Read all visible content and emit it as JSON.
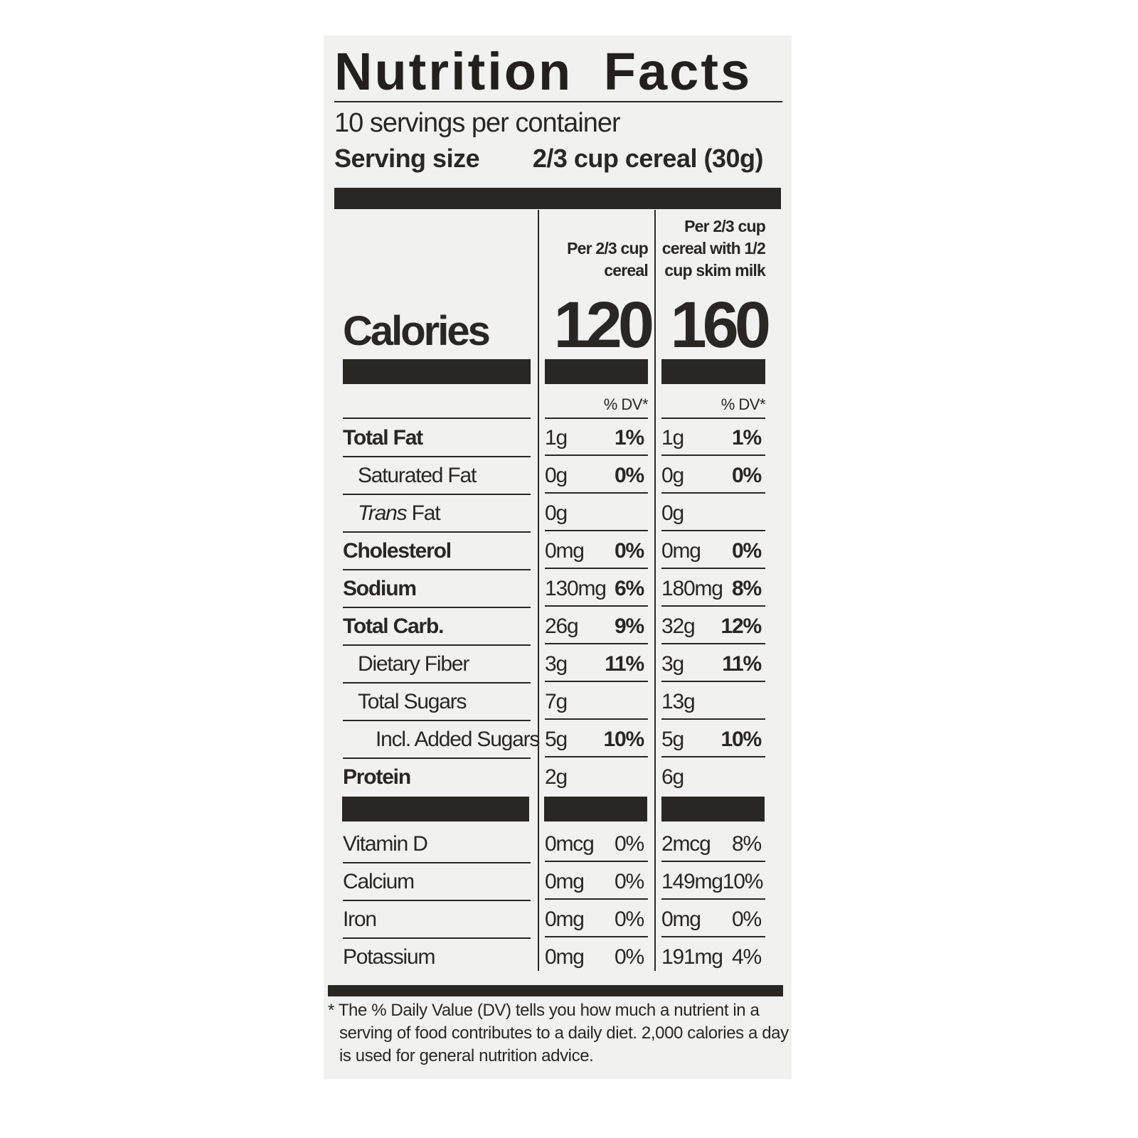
{
  "title": "Nutrition Facts",
  "servings_per_container": "10 servings per container",
  "serving_size_label": "Serving size",
  "serving_size_value": "2/3 cup cereal (30g)",
  "columns": [
    {
      "header_line1": "Per 2/3 cup",
      "header_line2": "cereal",
      "header_line3": "",
      "calories": "120",
      "dv_label": "% DV*"
    },
    {
      "header_line1": "Per 2/3 cup",
      "header_line2": "cereal with 1/2",
      "header_line3": "cup skim milk",
      "calories": "160",
      "dv_label": "% DV*"
    }
  ],
  "calories_label": "Calories",
  "nutrients": [
    {
      "name": "Total Fat",
      "style": "bold",
      "indent": 0,
      "c1_amt": "1g",
      "c1_dv": "1%",
      "c2_amt": "1g",
      "c2_dv": "1%"
    },
    {
      "name": "Saturated Fat",
      "style": "normal",
      "indent": 1,
      "c1_amt": "0g",
      "c1_dv": "0%",
      "c2_amt": "0g",
      "c2_dv": "0%"
    },
    {
      "name_italic": "Trans",
      "name": " Fat",
      "style": "normal",
      "indent": 1,
      "c1_amt": "0g",
      "c1_dv": "",
      "c2_amt": "0g",
      "c2_dv": ""
    },
    {
      "name": "Cholesterol",
      "style": "bold",
      "indent": 0,
      "c1_amt": "0mg",
      "c1_dv": "0%",
      "c2_amt": "0mg",
      "c2_dv": "0%"
    },
    {
      "name": "Sodium",
      "style": "bold",
      "indent": 0,
      "c1_amt": "130mg",
      "c1_dv": "6%",
      "c2_amt": "180mg",
      "c2_dv": "8%"
    },
    {
      "name": "Total Carb.",
      "style": "bold",
      "indent": 0,
      "c1_amt": "26g",
      "c1_dv": "9%",
      "c2_amt": "32g",
      "c2_dv": "12%"
    },
    {
      "name": "Dietary Fiber",
      "style": "normal",
      "indent": 1,
      "c1_amt": "3g",
      "c1_dv": "11%",
      "c2_amt": "3g",
      "c2_dv": "11%"
    },
    {
      "name": "Total Sugars",
      "style": "normal",
      "indent": 1,
      "c1_amt": "7g",
      "c1_dv": "",
      "c2_amt": "13g",
      "c2_dv": ""
    },
    {
      "name": "Incl. Added Sugars",
      "style": "normal",
      "indent": 2,
      "c1_amt": "5g",
      "c1_dv": "10%",
      "c2_amt": "5g",
      "c2_dv": "10%"
    },
    {
      "name": "Protein",
      "style": "bold",
      "indent": 0,
      "c1_amt": "2g",
      "c1_dv": "",
      "c2_amt": "6g",
      "c2_dv": ""
    }
  ],
  "vitamins": [
    {
      "name": "Vitamin D",
      "c1_amt": "0mcg",
      "c1_dv": "0%",
      "c2_amt": "2mcg",
      "c2_dv": "8%"
    },
    {
      "name": "Calcium",
      "c1_amt": "0mg",
      "c1_dv": "0%",
      "c2_amt": "149mg",
      "c2_dv": "10%"
    },
    {
      "name": "Iron",
      "c1_amt": "0mg",
      "c1_dv": "0%",
      "c2_amt": "0mg",
      "c2_dv": "0%"
    },
    {
      "name": "Potassium",
      "c1_amt": "0mg",
      "c1_dv": "0%",
      "c2_amt": "191mg",
      "c2_dv": "4%"
    }
  ],
  "footnote_line1": "* The % Daily Value (DV) tells you how much a nutrient in a",
  "footnote_line2": "serving of food contributes to a daily diet. 2,000 calories a day",
  "footnote_line3": "is used for general nutrition advice."
}
